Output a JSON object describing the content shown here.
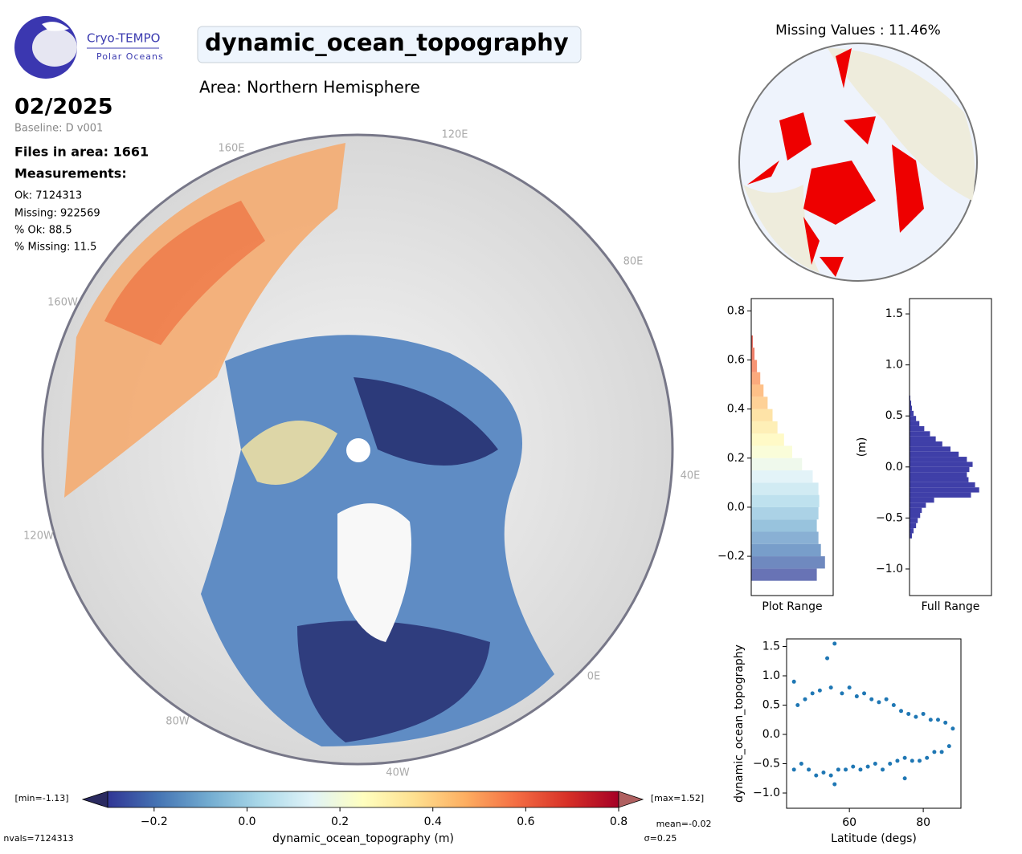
{
  "header": {
    "logo_title": "Cryo-TEMPO",
    "logo_subtitle": "Polar Oceans",
    "variable": "dynamic_ocean_topography",
    "area": "Area: Northern Hemisphere",
    "date": "02/2025",
    "baseline": "Baseline: D v001",
    "files": "Files in area: 1661",
    "measurements_title": "Measurements:",
    "ok": "Ok: 7124313",
    "missing": "Missing: 922569",
    "pct_ok": "% Ok: 88.5",
    "pct_missing": "% Missing: 11.5"
  },
  "map": {
    "lon_labels": [
      "160E",
      "120E",
      "80E",
      "40E",
      "0E",
      "40W",
      "80W",
      "120W",
      "160W"
    ]
  },
  "missing_map": {
    "title": "Missing Values : 11.46%"
  },
  "colorbar": {
    "label": "dynamic_ocean_topography (m)",
    "xlim": [
      -0.3,
      0.8
    ],
    "xticks": [
      {
        "value": -0.2,
        "label": "−0.2"
      },
      {
        "value": 0,
        "label": "0.0"
      },
      0.2,
      0.4,
      0.6,
      0.8
    ],
    "colormap": [
      "#313695",
      "#4575b4",
      "#74add1",
      "#abd9e9",
      "#e0f3f8",
      "#ffffbf",
      "#fee090",
      "#fdae61",
      "#f46d43",
      "#d73027",
      "#a50026"
    ],
    "min_label": "[min=-1.13]",
    "max_label": "[max=1.52]",
    "mean": "mean=-0.02",
    "sigma": "σ=0.25",
    "nvals": "nvals=7124313"
  },
  "chart_data": [
    {
      "type": "histogram",
      "orientation": "horizontal",
      "xlabel": "Plot Range",
      "bins": [
        -0.3,
        -0.25,
        -0.2,
        -0.15,
        -0.1,
        -0.05,
        0,
        0.05,
        0.1,
        0.15,
        0.2,
        0.25,
        0.3,
        0.35,
        0.4,
        0.45,
        0.5,
        0.55,
        0.6,
        0.65,
        0.7
      ],
      "values": [
        80,
        90,
        85,
        82,
        80,
        82,
        83,
        82,
        75,
        62,
        50,
        40,
        32,
        26,
        20,
        15,
        11,
        7,
        4,
        2
      ],
      "xlim": [
        0,
        100
      ],
      "ylim": [
        -0.36,
        0.85
      ],
      "yticks": [
        {
          "value": -0.2,
          "label": "−0.2"
        },
        {
          "value": 0,
          "label": "0.0"
        },
        0.2,
        0.4,
        0.6,
        0.8
      ]
    },
    {
      "type": "histogram",
      "orientation": "horizontal",
      "xlabel": "Full Range",
      "ylabel": "(m)",
      "color": "#3f3fa8",
      "bins": [
        -0.7,
        -0.65,
        -0.6,
        -0.55,
        -0.5,
        -0.45,
        -0.4,
        -0.35,
        -0.3,
        -0.25,
        -0.2,
        -0.15,
        -0.1,
        -0.05,
        0,
        0.05,
        0.1,
        0.15,
        0.2,
        0.25,
        0.3,
        0.35,
        0.4,
        0.45,
        0.5,
        0.55,
        0.6,
        0.65,
        0.7
      ],
      "values": [
        3,
        5,
        8,
        10,
        13,
        15,
        20,
        30,
        75,
        85,
        80,
        72,
        70,
        73,
        77,
        70,
        60,
        50,
        40,
        32,
        25,
        18,
        12,
        8,
        5,
        3,
        2,
        1
      ],
      "xlim": [
        0,
        100
      ],
      "ylim": [
        -1.26,
        1.65
      ],
      "yticks": [
        {
          "value": -1,
          "label": "−1.0"
        },
        {
          "value": -0.5,
          "label": "−0.5"
        },
        {
          "value": 0,
          "label": "0.0"
        },
        0.5,
        {
          "value": 1,
          "label": "1.0"
        },
        1.5
      ]
    },
    {
      "type": "scatter",
      "xlabel": "Latitude (degs)",
      "ylabel": "dynamic_ocean_topography",
      "color": "#1f77b4",
      "x": [
        45,
        45,
        46,
        47,
        48,
        49,
        50,
        51,
        52,
        53,
        54,
        55,
        55,
        56,
        57,
        58,
        59,
        60,
        61,
        62,
        63,
        64,
        65,
        66,
        67,
        68,
        69,
        70,
        71,
        72,
        73,
        74,
        75,
        76,
        77,
        78,
        79,
        80,
        81,
        82,
        83,
        84,
        85,
        86,
        87,
        88,
        56,
        75
      ],
      "values": [
        0.9,
        -0.6,
        0.5,
        -0.5,
        0.6,
        -0.6,
        0.7,
        -0.7,
        0.75,
        -0.65,
        1.3,
        -0.7,
        0.8,
        1.55,
        -0.6,
        0.7,
        -0.6,
        0.8,
        -0.55,
        0.65,
        -0.6,
        0.7,
        -0.55,
        0.6,
        -0.5,
        0.55,
        -0.6,
        0.6,
        -0.5,
        0.5,
        -0.45,
        0.4,
        -0.4,
        0.35,
        -0.45,
        0.3,
        -0.45,
        0.35,
        -0.4,
        0.25,
        -0.3,
        0.25,
        -0.3,
        0.2,
        -0.2,
        0.1,
        -0.85,
        -0.75
      ],
      "xlim": [
        43,
        90.2
      ],
      "ylim": [
        -1.26,
        1.63
      ],
      "xticks": [
        60,
        80
      ],
      "yticks": [
        {
          "value": -1,
          "label": "−1.0"
        },
        {
          "value": -0.5,
          "label": "−0.5"
        },
        {
          "value": 0,
          "label": "0.0"
        },
        0.5,
        {
          "value": 1,
          "label": "1.0"
        },
        1.5
      ]
    }
  ]
}
